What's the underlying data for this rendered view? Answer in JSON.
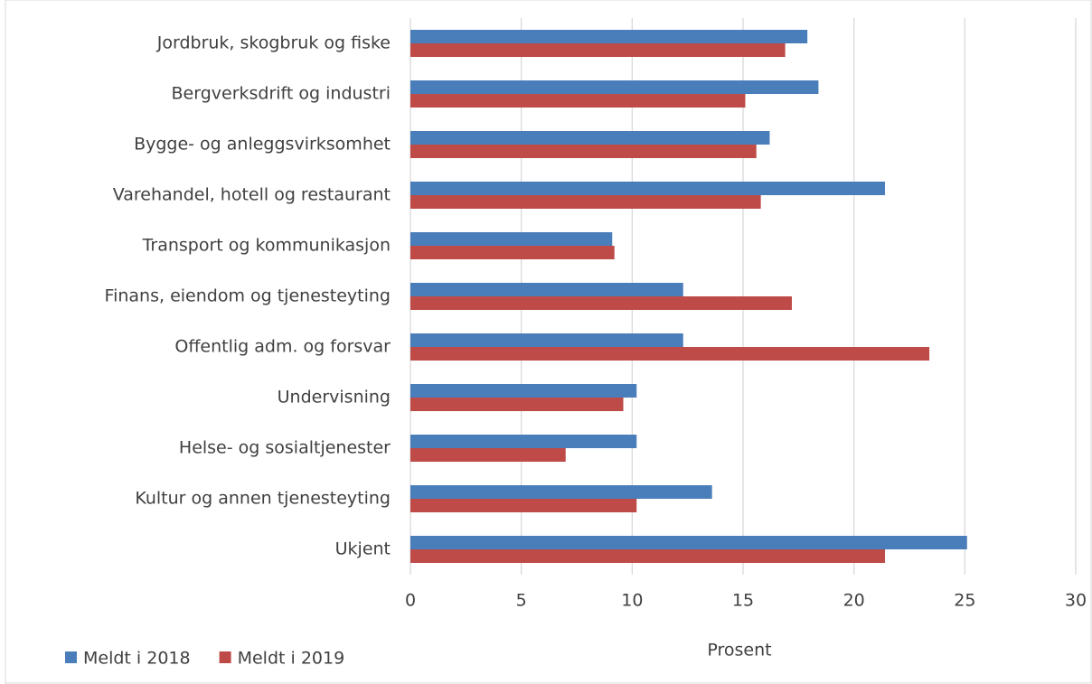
{
  "chart_data": {
    "type": "hbar",
    "categories": [
      "Jordbruk, skogbruk og fiske",
      "Bergverksdrift og industri",
      "Bygge- og anleggsvirksomhet",
      "Varehandel, hotell og restaurant",
      "Transport og kommunikasjon",
      "Finans, eiendom og tjenesteyting",
      "Offentlig adm. og forsvar",
      "Undervisning",
      "Helse- og sosialtjenester",
      "Kultur og annen tjenesteyting",
      "Ukjent"
    ],
    "series": [
      {
        "name": "Meldt i 2018",
        "color": "#4a7ebb",
        "values": [
          17.9,
          18.4,
          16.2,
          21.4,
          9.1,
          12.3,
          12.3,
          10.2,
          10.2,
          13.6,
          25.1
        ]
      },
      {
        "name": "Meldt i 2019",
        "color": "#be4b48",
        "values": [
          16.9,
          15.1,
          15.6,
          15.8,
          9.2,
          17.2,
          23.4,
          9.6,
          7.0,
          10.2,
          21.4
        ]
      }
    ],
    "xlabel": "Prosent",
    "xlim": [
      0,
      30
    ],
    "xticks": [
      0,
      5,
      10,
      15,
      20,
      25,
      30
    ],
    "grid": true,
    "legend": "bottom-left"
  }
}
